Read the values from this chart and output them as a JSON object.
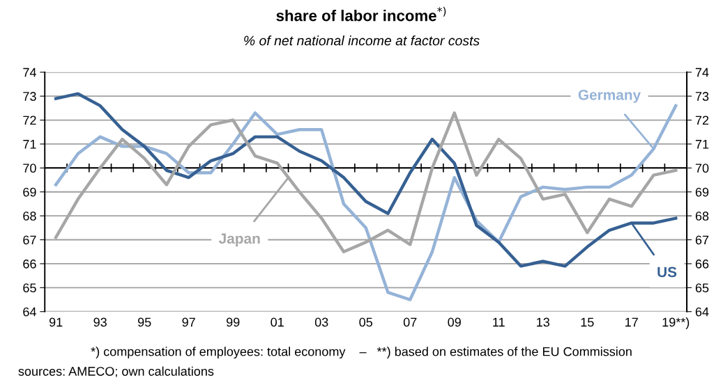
{
  "chart_data": {
    "type": "line",
    "title": "share of labor income$^{*)}$",
    "subtitle": "% of net national income at factor costs",
    "categories": [
      "91",
      null,
      "93",
      null,
      "95",
      null,
      "97",
      null,
      "99",
      null,
      "01",
      null,
      "03",
      null,
      "05",
      null,
      "07",
      null,
      "09",
      null,
      "11",
      null,
      "13",
      null,
      "15",
      null,
      "17",
      null,
      "19**)"
    ],
    "series": [
      {
        "name": "Germany",
        "color": "#95b3d7",
        "values": [
          69.3,
          70.6,
          71.3,
          70.9,
          70.9,
          70.6,
          69.8,
          69.8,
          71.0,
          72.3,
          71.4,
          71.6,
          71.6,
          68.5,
          67.5,
          64.8,
          64.5,
          66.5,
          69.6,
          67.8,
          66.9,
          68.8,
          69.2,
          69.1,
          69.2,
          69.2,
          69.7,
          70.8,
          72.6
        ]
      },
      {
        "name": "US",
        "color": "#366092",
        "values": [
          72.9,
          73.1,
          72.6,
          71.6,
          70.9,
          69.9,
          69.6,
          70.3,
          70.6,
          71.3,
          71.3,
          70.7,
          70.3,
          69.6,
          68.6,
          68.1,
          69.8,
          71.2,
          70.2,
          67.6,
          66.9,
          65.9,
          66.1,
          65.9,
          66.7,
          67.4,
          67.7,
          67.7,
          67.9
        ]
      },
      {
        "name": "Japan",
        "color": "#a6a6a6",
        "values": [
          67.1,
          68.7,
          70.0,
          71.2,
          70.4,
          69.3,
          70.9,
          71.8,
          72.0,
          70.5,
          70.2,
          69.0,
          67.9,
          66.5,
          66.9,
          67.4,
          66.8,
          70.0,
          72.3,
          69.7,
          71.2,
          70.4,
          68.7,
          68.9,
          67.3,
          68.7,
          68.4,
          69.7,
          69.9
        ]
      }
    ],
    "ylim": [
      64,
      74
    ],
    "yticks": [
      64,
      65,
      66,
      67,
      68,
      69,
      70,
      71,
      72,
      73,
      74
    ],
    "y2lim": [
      64,
      74
    ],
    "y2ticks": [
      64,
      65,
      66,
      67,
      68,
      69,
      70,
      71,
      72,
      73,
      74
    ],
    "ref_lines": [
      {
        "axis": "y",
        "value": 70,
        "color": "#000000"
      }
    ],
    "grid": "y",
    "legend": false,
    "marker": "none",
    "line_style": "solid",
    "annotations": [
      "*) compensation of employees: total economy    –   **) based on estimates of the EU Commission",
      "sources: AMECO; own calculations"
    ]
  }
}
